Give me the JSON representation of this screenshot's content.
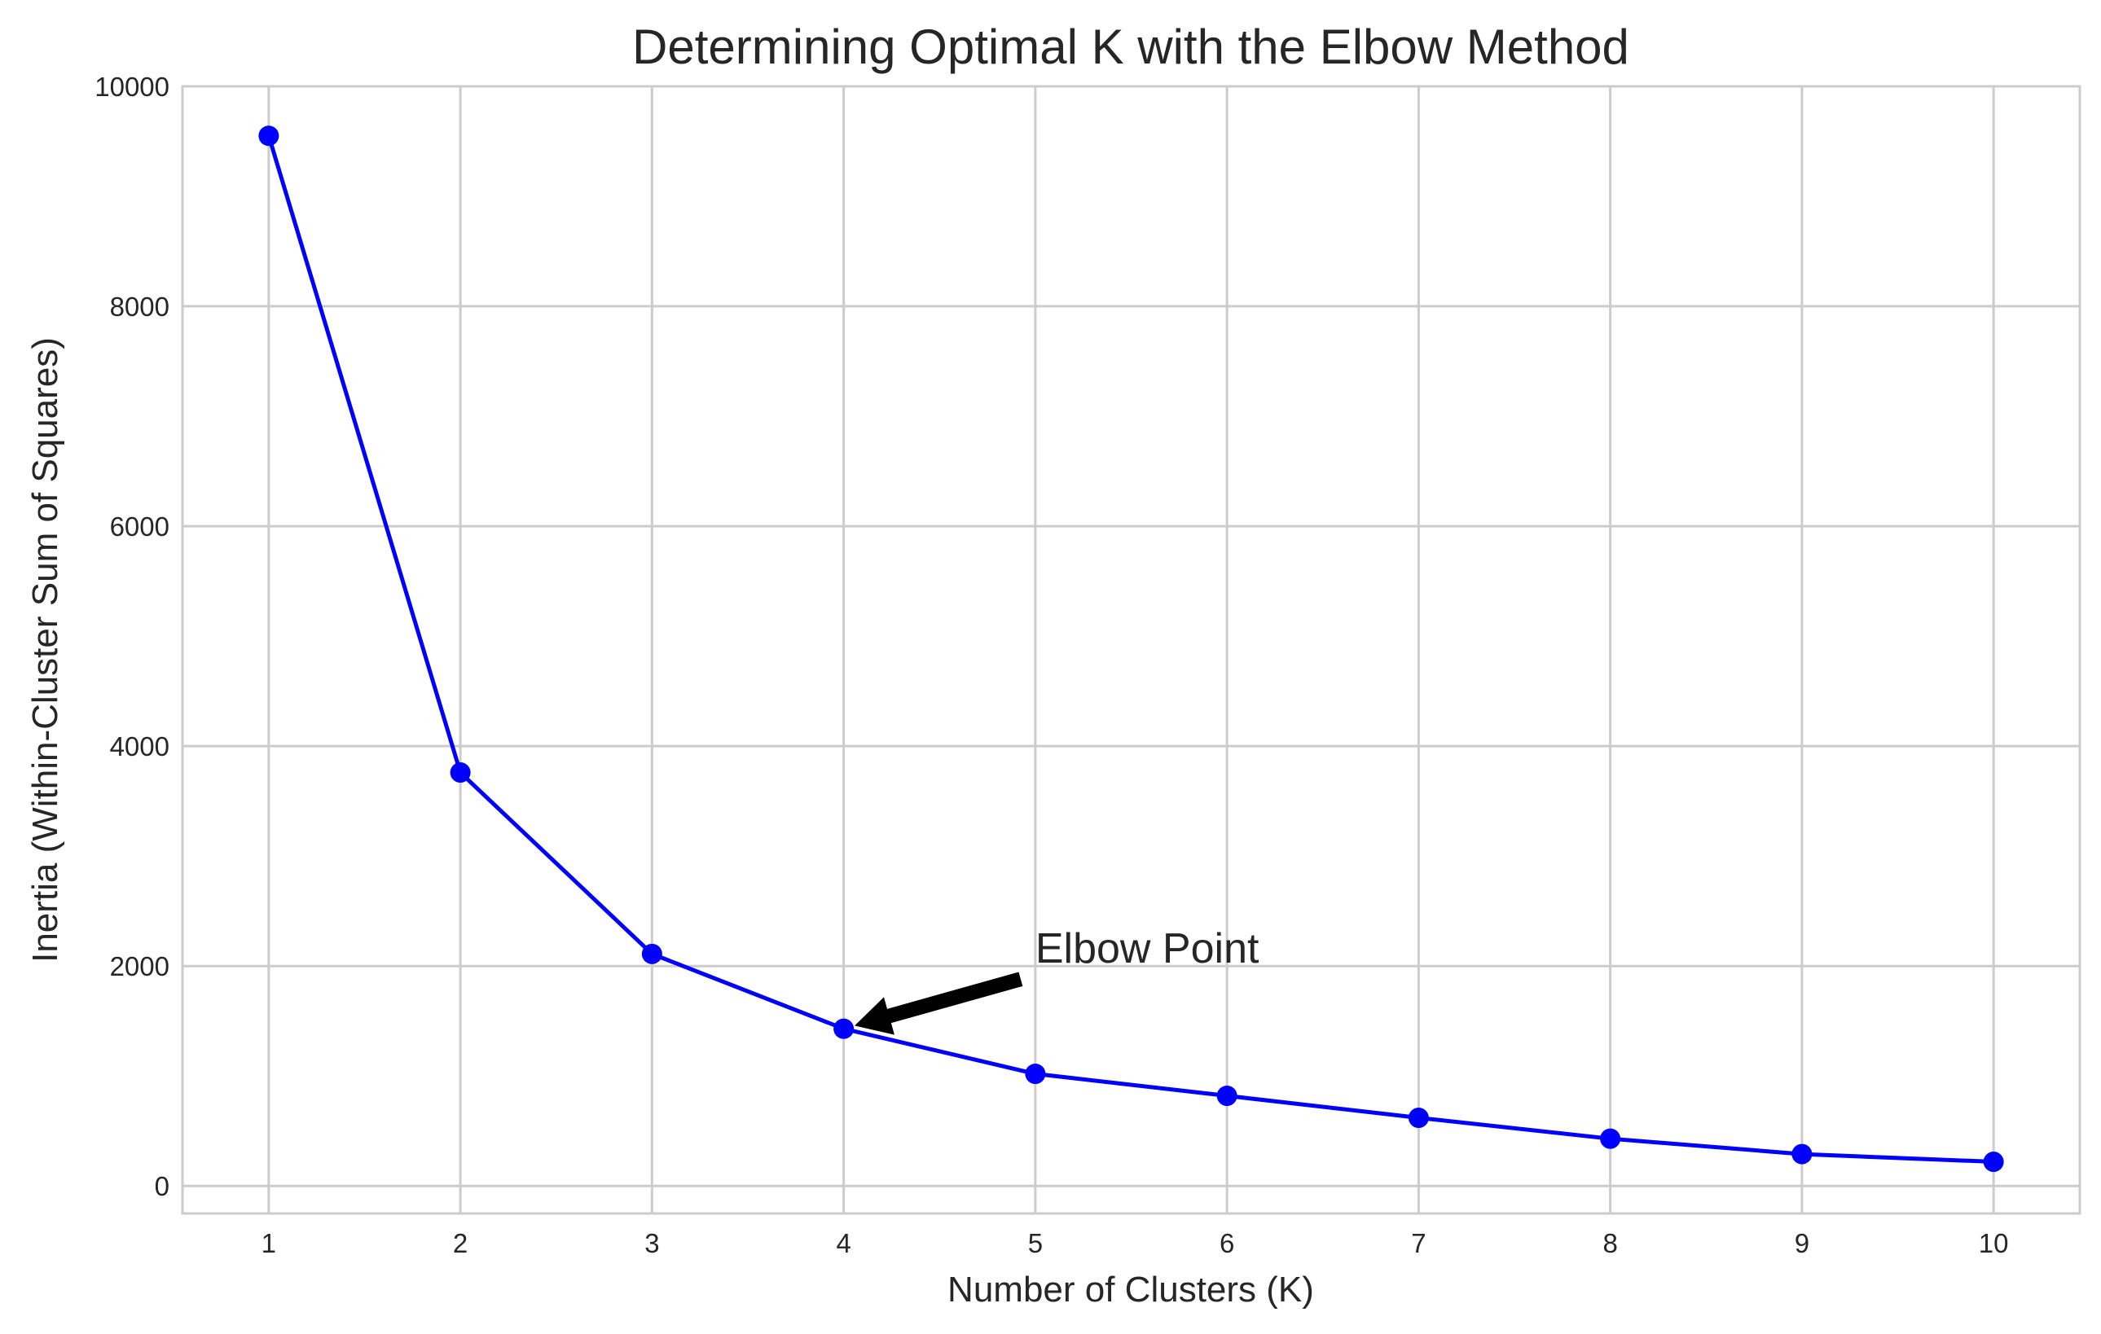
{
  "chart_data": {
    "type": "line",
    "title": "Determining Optimal K with the Elbow Method",
    "xlabel": "Number of Clusters (K)",
    "ylabel": "Inertia (Within-Cluster Sum of Squares)",
    "x": [
      1,
      2,
      3,
      4,
      5,
      6,
      7,
      8,
      9,
      10
    ],
    "series": [
      {
        "values": [
          9550,
          3760,
          2110,
          1430,
          1020,
          820,
          620,
          430,
          290,
          220
        ],
        "color": "#0000ff",
        "marker": "circle"
      }
    ],
    "xticks": [
      "1",
      "2",
      "3",
      "4",
      "5",
      "6",
      "7",
      "8",
      "9",
      "10"
    ],
    "yticks": [
      "0",
      "2000",
      "4000",
      "6000",
      "8000",
      "10000"
    ],
    "xlim": [
      0.55,
      10.45
    ],
    "ylim": [
      -250,
      10000
    ],
    "grid": true,
    "annotation": {
      "text": "Elbow Point",
      "point": {
        "x": 4,
        "y": 1430
      },
      "text_position": {
        "x": 5,
        "y": 2000
      },
      "arrow_color": "#000000"
    }
  }
}
